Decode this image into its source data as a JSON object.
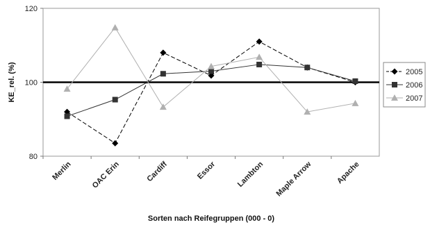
{
  "chart_data": {
    "type": "line",
    "categories": [
      "Merlin",
      "OAC Erin",
      "Cardiff",
      "Essor",
      "Lambton",
      "Maple Arrow",
      "Apache"
    ],
    "series": [
      {
        "name": "2005",
        "values": [
          92,
          83.5,
          108,
          101.8,
          111,
          104,
          100
        ],
        "color": "#000000",
        "marker": "diamond",
        "dash": "dashed"
      },
      {
        "name": "2006",
        "values": [
          90.8,
          95.3,
          102.3,
          103,
          104.8,
          104,
          100.3
        ],
        "color": "#333333",
        "marker": "square",
        "dash": "solid"
      },
      {
        "name": "2007",
        "values": [
          98.2,
          114.8,
          93.3,
          104.3,
          106.8,
          92,
          94.3
        ],
        "color": "#b0b0b0",
        "marker": "triangle",
        "dash": "solid"
      }
    ],
    "reference_line": 100,
    "ylim": [
      80,
      120
    ],
    "yticks": [
      80,
      100,
      120
    ],
    "xlabel": "Sorten nach Reifegruppen (000 - 0)",
    "ylabel": "KE_rel. (%)",
    "legend": "right",
    "grid": false
  }
}
